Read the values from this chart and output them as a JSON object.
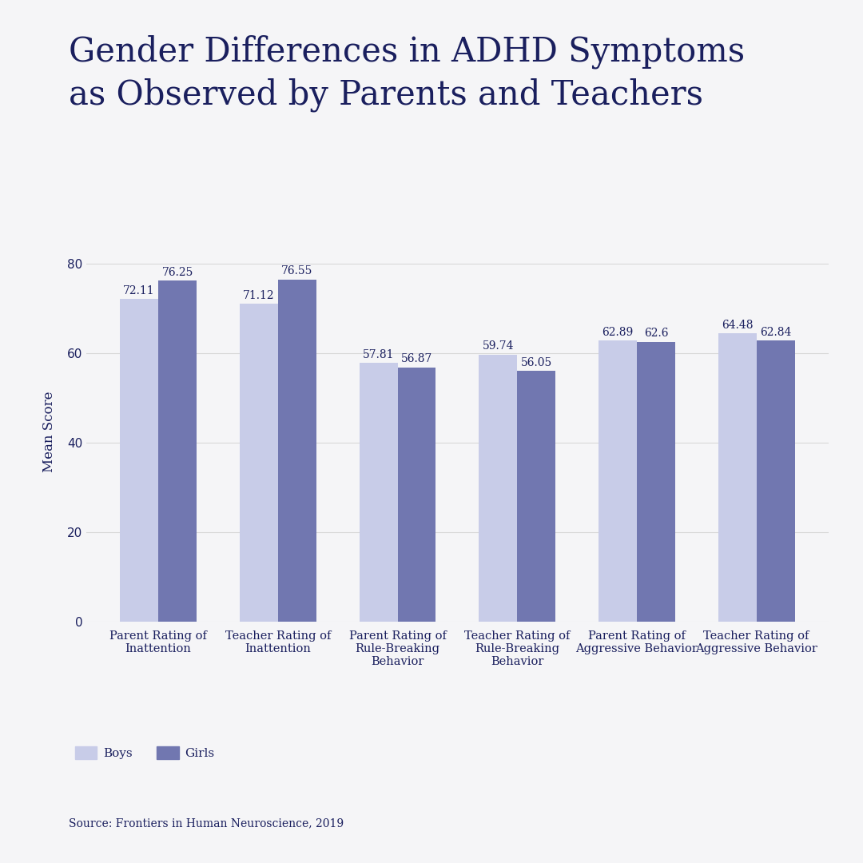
{
  "title": "Gender Differences in ADHD Symptoms\nas Observed by Parents and Teachers",
  "ylabel": "Mean Score",
  "categories": [
    "Parent Rating of\nInattention",
    "Teacher Rating of\nInattention",
    "Parent Rating of\nRule-Breaking\nBehavior",
    "Teacher Rating of\nRule-Breaking\nBehavior",
    "Parent Rating of\nAggressive Behavior",
    "Teacher Rating of\nAggressive Behavior"
  ],
  "boys_values": [
    72.11,
    71.12,
    57.81,
    59.74,
    62.89,
    64.48
  ],
  "girls_values": [
    76.25,
    76.55,
    56.87,
    56.05,
    62.6,
    62.84
  ],
  "boys_color": "#c8cce8",
  "girls_color": "#7177b0",
  "ylim": [
    0,
    85
  ],
  "yticks": [
    0,
    20,
    40,
    60,
    80
  ],
  "bar_width": 0.32,
  "background_color": "#f5f5f7",
  "title_color": "#1a1f5e",
  "label_color": "#1a1f5e",
  "source_text": "Source: Frontiers in Human Neuroscience, 2019",
  "legend_boys": "Boys",
  "legend_girls": "Girls",
  "title_fontsize": 30,
  "label_fontsize": 10.5,
  "tick_fontsize": 11,
  "value_fontsize": 10,
  "ylabel_fontsize": 12,
  "source_fontsize": 10,
  "legend_fontsize": 11,
  "grid_color": "#d8d8d8"
}
